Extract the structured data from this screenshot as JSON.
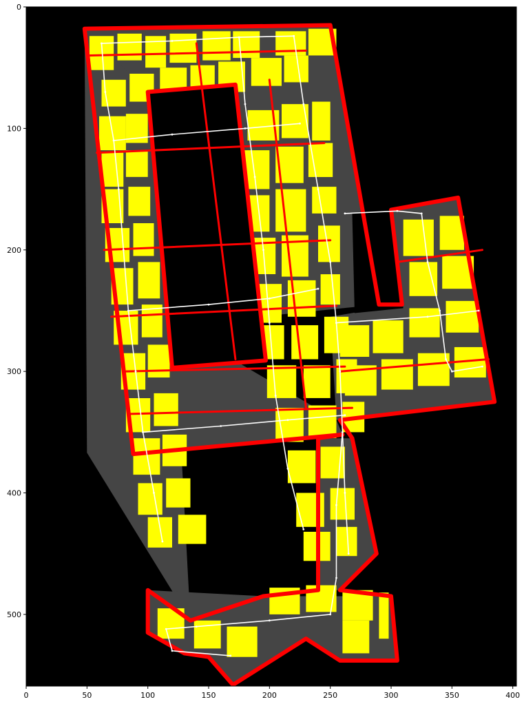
{
  "figure": {
    "background": "#ffffff",
    "image_background": "#000000"
  },
  "colors": {
    "region_fill": "#454545",
    "room_fill": "#ffff00",
    "boundary": "#ff0000",
    "path": "#ffffff"
  },
  "axes": {
    "x_ticks": [
      {
        "value": 0,
        "label": "0"
      },
      {
        "value": 50,
        "label": "50"
      },
      {
        "value": 100,
        "label": "100"
      },
      {
        "value": 150,
        "label": "150"
      },
      {
        "value": 200,
        "label": "200"
      },
      {
        "value": 250,
        "label": "250"
      },
      {
        "value": 300,
        "label": "300"
      },
      {
        "value": 350,
        "label": "350"
      },
      {
        "value": 400,
        "label": "400"
      }
    ],
    "y_ticks": [
      {
        "value": 0,
        "label": "0"
      },
      {
        "value": 100,
        "label": "100"
      },
      {
        "value": 200,
        "label": "200"
      },
      {
        "value": 300,
        "label": "300"
      },
      {
        "value": 400,
        "label": "400"
      },
      {
        "value": 500,
        "label": "500"
      }
    ],
    "x_range": [
      0,
      403
    ],
    "y_range": [
      559,
      0
    ]
  },
  "chart_data": {
    "type": "map",
    "xlim": [
      0,
      403
    ],
    "ylim": [
      559,
      0
    ],
    "regions": [
      {
        "name": "main-block",
        "points": [
          [
            48,
            18
          ],
          [
            250,
            15
          ],
          [
            290,
            245
          ],
          [
            122,
            262
          ],
          [
            135,
            505
          ],
          [
            50,
            367
          ]
        ]
      },
      {
        "name": "right-wing",
        "points": [
          [
            300,
            167
          ],
          [
            355,
            157
          ],
          [
            385,
            325
          ],
          [
            255,
            340
          ],
          [
            250,
            255
          ],
          [
            309,
            245
          ]
        ]
      },
      {
        "name": "outer-left-wall",
        "points": [
          [
            48,
            18
          ],
          [
            88,
            368
          ],
          [
            260,
            352
          ],
          [
            255,
            340
          ],
          [
            122,
            262
          ],
          [
            100,
            70
          ]
        ]
      },
      {
        "name": "stem",
        "points": [
          [
            240,
            355
          ],
          [
            268,
            355
          ],
          [
            288,
            450
          ],
          [
            258,
            480
          ],
          [
            240,
            480
          ]
        ]
      },
      {
        "name": "bottom-block",
        "points": [
          [
            195,
            485
          ],
          [
            300,
            485
          ],
          [
            305,
            538
          ],
          [
            258,
            538
          ],
          [
            230,
            520
          ],
          [
            170,
            558
          ],
          [
            150,
            535
          ],
          [
            130,
            532
          ],
          [
            100,
            515
          ],
          [
            100,
            480
          ]
        ]
      }
    ],
    "holes": [
      {
        "name": "courtyard",
        "points": [
          [
            100,
            70
          ],
          [
            172,
            64
          ],
          [
            197,
            291
          ],
          [
            120,
            297
          ]
        ]
      },
      {
        "name": "notch",
        "points": [
          [
            268,
            170
          ],
          [
            300,
            167
          ],
          [
            310,
            248
          ],
          [
            270,
            252
          ]
        ]
      }
    ],
    "rooms": [
      [
        52,
        24,
        72,
        52
      ],
      [
        75,
        22,
        95,
        44
      ],
      [
        98,
        24,
        115,
        50
      ],
      [
        118,
        22,
        140,
        46
      ],
      [
        145,
        20,
        168,
        44
      ],
      [
        170,
        20,
        192,
        42
      ],
      [
        205,
        20,
        230,
        40
      ],
      [
        232,
        18,
        255,
        40
      ],
      [
        62,
        60,
        82,
        82
      ],
      [
        85,
        55,
        105,
        78
      ],
      [
        110,
        50,
        132,
        76
      ],
      [
        135,
        48,
        155,
        70
      ],
      [
        158,
        45,
        180,
        70
      ],
      [
        185,
        42,
        210,
        65
      ],
      [
        212,
        40,
        232,
        62
      ],
      [
        60,
        90,
        82,
        118
      ],
      [
        82,
        88,
        100,
        112
      ],
      [
        182,
        85,
        208,
        110
      ],
      [
        210,
        80,
        232,
        108
      ],
      [
        235,
        78,
        250,
        110
      ],
      [
        62,
        120,
        80,
        148
      ],
      [
        82,
        118,
        100,
        140
      ],
      [
        175,
        118,
        200,
        150
      ],
      [
        205,
        115,
        228,
        145
      ],
      [
        232,
        112,
        252,
        140
      ],
      [
        62,
        150,
        80,
        178
      ],
      [
        84,
        148,
        102,
        172
      ],
      [
        178,
        155,
        200,
        185
      ],
      [
        205,
        150,
        230,
        185
      ],
      [
        235,
        148,
        255,
        170
      ],
      [
        65,
        182,
        85,
        210
      ],
      [
        88,
        178,
        105,
        205
      ],
      [
        180,
        190,
        205,
        220
      ],
      [
        210,
        188,
        232,
        222
      ],
      [
        240,
        180,
        258,
        210
      ],
      [
        70,
        215,
        88,
        245
      ],
      [
        92,
        210,
        110,
        240
      ],
      [
        185,
        228,
        210,
        260
      ],
      [
        215,
        225,
        238,
        255
      ],
      [
        242,
        220,
        258,
        245
      ],
      [
        72,
        250,
        92,
        278
      ],
      [
        95,
        245,
        112,
        272
      ],
      [
        190,
        262,
        212,
        290
      ],
      [
        218,
        262,
        240,
        290
      ],
      [
        245,
        255,
        265,
        285
      ],
      [
        78,
        285,
        98,
        315
      ],
      [
        100,
        278,
        118,
        305
      ],
      [
        198,
        295,
        222,
        322
      ],
      [
        228,
        295,
        250,
        322
      ],
      [
        255,
        290,
        272,
        318
      ],
      [
        82,
        322,
        102,
        350
      ],
      [
        105,
        318,
        125,
        345
      ],
      [
        205,
        330,
        228,
        358
      ],
      [
        232,
        328,
        255,
        355
      ],
      [
        260,
        325,
        278,
        350
      ],
      [
        88,
        355,
        110,
        385
      ],
      [
        112,
        352,
        132,
        378
      ],
      [
        215,
        365,
        238,
        392
      ],
      [
        242,
        362,
        262,
        388
      ],
      [
        92,
        392,
        112,
        418
      ],
      [
        115,
        388,
        135,
        412
      ],
      [
        222,
        400,
        245,
        428
      ],
      [
        250,
        396,
        270,
        422
      ],
      [
        100,
        420,
        120,
        445
      ],
      [
        125,
        418,
        148,
        442
      ],
      [
        228,
        432,
        250,
        456
      ],
      [
        255,
        428,
        272,
        452
      ],
      [
        310,
        175,
        335,
        205
      ],
      [
        340,
        172,
        360,
        200
      ],
      [
        315,
        210,
        338,
        238
      ],
      [
        342,
        205,
        368,
        232
      ],
      [
        258,
        262,
        282,
        288
      ],
      [
        285,
        258,
        310,
        285
      ],
      [
        315,
        248,
        340,
        272
      ],
      [
        345,
        242,
        372,
        268
      ],
      [
        262,
        295,
        288,
        320
      ],
      [
        292,
        290,
        318,
        315
      ],
      [
        322,
        285,
        348,
        312
      ],
      [
        352,
        280,
        378,
        305
      ],
      [
        200,
        478,
        225,
        500
      ],
      [
        230,
        476,
        255,
        498
      ],
      [
        260,
        480,
        285,
        505
      ],
      [
        290,
        482,
        298,
        520
      ],
      [
        108,
        495,
        130,
        520
      ],
      [
        138,
        505,
        160,
        528
      ],
      [
        165,
        510,
        190,
        535
      ],
      [
        260,
        505,
        282,
        532
      ]
    ],
    "boundaries": [
      [
        [
          48,
          18
        ],
        [
          250,
          15
        ],
        [
          290,
          245
        ],
        [
          309,
          245
        ],
        [
          300,
          167
        ],
        [
          355,
          157
        ],
        [
          385,
          325
        ],
        [
          258,
          340
        ],
        [
          268,
          355
        ],
        [
          288,
          450
        ],
        [
          258,
          480
        ],
        [
          300,
          485
        ],
        [
          305,
          538
        ],
        [
          258,
          538
        ],
        [
          230,
          520
        ],
        [
          170,
          558
        ],
        [
          150,
          535
        ],
        [
          130,
          532
        ],
        [
          100,
          515
        ],
        [
          100,
          480
        ],
        [
          135,
          505
        ],
        [
          195,
          485
        ],
        [
          240,
          480
        ],
        [
          240,
          355
        ],
        [
          260,
          352
        ],
        [
          88,
          368
        ],
        [
          48,
          18
        ]
      ],
      [
        [
          100,
          70
        ],
        [
          172,
          64
        ],
        [
          197,
          291
        ],
        [
          120,
          297
        ],
        [
          100,
          70
        ]
      ],
      [
        [
          50,
          40
        ],
        [
          230,
          36
        ]
      ],
      [
        [
          58,
          120
        ],
        [
          245,
          112
        ]
      ],
      [
        [
          64,
          200
        ],
        [
          250,
          192
        ]
      ],
      [
        [
          70,
          255
        ],
        [
          255,
          246
        ]
      ],
      [
        [
          80,
          300
        ],
        [
          262,
          296
        ]
      ],
      [
        [
          86,
          335
        ],
        [
          268,
          330
        ]
      ],
      [
        [
          258,
          300
        ],
        [
          380,
          290
        ]
      ],
      [
        [
          140,
          30
        ],
        [
          172,
          290
        ]
      ],
      [
        [
          200,
          60
        ],
        [
          230,
          330
        ]
      ],
      [
        [
          305,
          210
        ],
        [
          375,
          200
        ]
      ]
    ],
    "paths": [
      [
        [
          62,
          30
        ],
        [
          120,
          28
        ],
        [
          175,
          25
        ],
        [
          220,
          24
        ]
      ],
      [
        [
          62,
          30
        ],
        [
          65,
          70
        ],
        [
          72,
          110
        ],
        [
          76,
          150
        ],
        [
          80,
          200
        ],
        [
          84,
          250
        ],
        [
          90,
          300
        ],
        [
          96,
          350
        ],
        [
          105,
          400
        ],
        [
          112,
          440
        ]
      ],
      [
        [
          175,
          25
        ],
        [
          180,
          80
        ],
        [
          188,
          140
        ],
        [
          195,
          200
        ],
        [
          200,
          260
        ],
        [
          205,
          320
        ],
        [
          215,
          380
        ],
        [
          228,
          430
        ]
      ],
      [
        [
          220,
          24
        ],
        [
          228,
          80
        ],
        [
          240,
          150
        ],
        [
          250,
          210
        ],
        [
          255,
          260
        ],
        [
          258,
          300
        ],
        [
          260,
          350
        ],
        [
          262,
          400
        ],
        [
          265,
          450
        ]
      ],
      [
        [
          96,
          350
        ],
        [
          160,
          345
        ],
        [
          215,
          340
        ],
        [
          262,
          336
        ]
      ],
      [
        [
          255,
          260
        ],
        [
          330,
          255
        ],
        [
          372,
          250
        ]
      ],
      [
        [
          262,
          170
        ],
        [
          305,
          168
        ],
        [
          325,
          170
        ],
        [
          330,
          210
        ],
        [
          340,
          250
        ],
        [
          345,
          290
        ],
        [
          350,
          300
        ],
        [
          375,
          296
        ]
      ],
      [
        [
          260,
          350
        ],
        [
          255,
          410
        ],
        [
          255,
          470
        ],
        [
          250,
          500
        ],
        [
          200,
          505
        ],
        [
          140,
          510
        ],
        [
          115,
          512
        ],
        [
          120,
          530
        ],
        [
          168,
          534
        ]
      ],
      [
        [
          84,
          250
        ],
        [
          150,
          245
        ],
        [
          200,
          240
        ],
        [
          240,
          232
        ]
      ],
      [
        [
          72,
          110
        ],
        [
          120,
          105
        ],
        [
          180,
          100
        ],
        [
          225,
          96
        ]
      ]
    ]
  }
}
